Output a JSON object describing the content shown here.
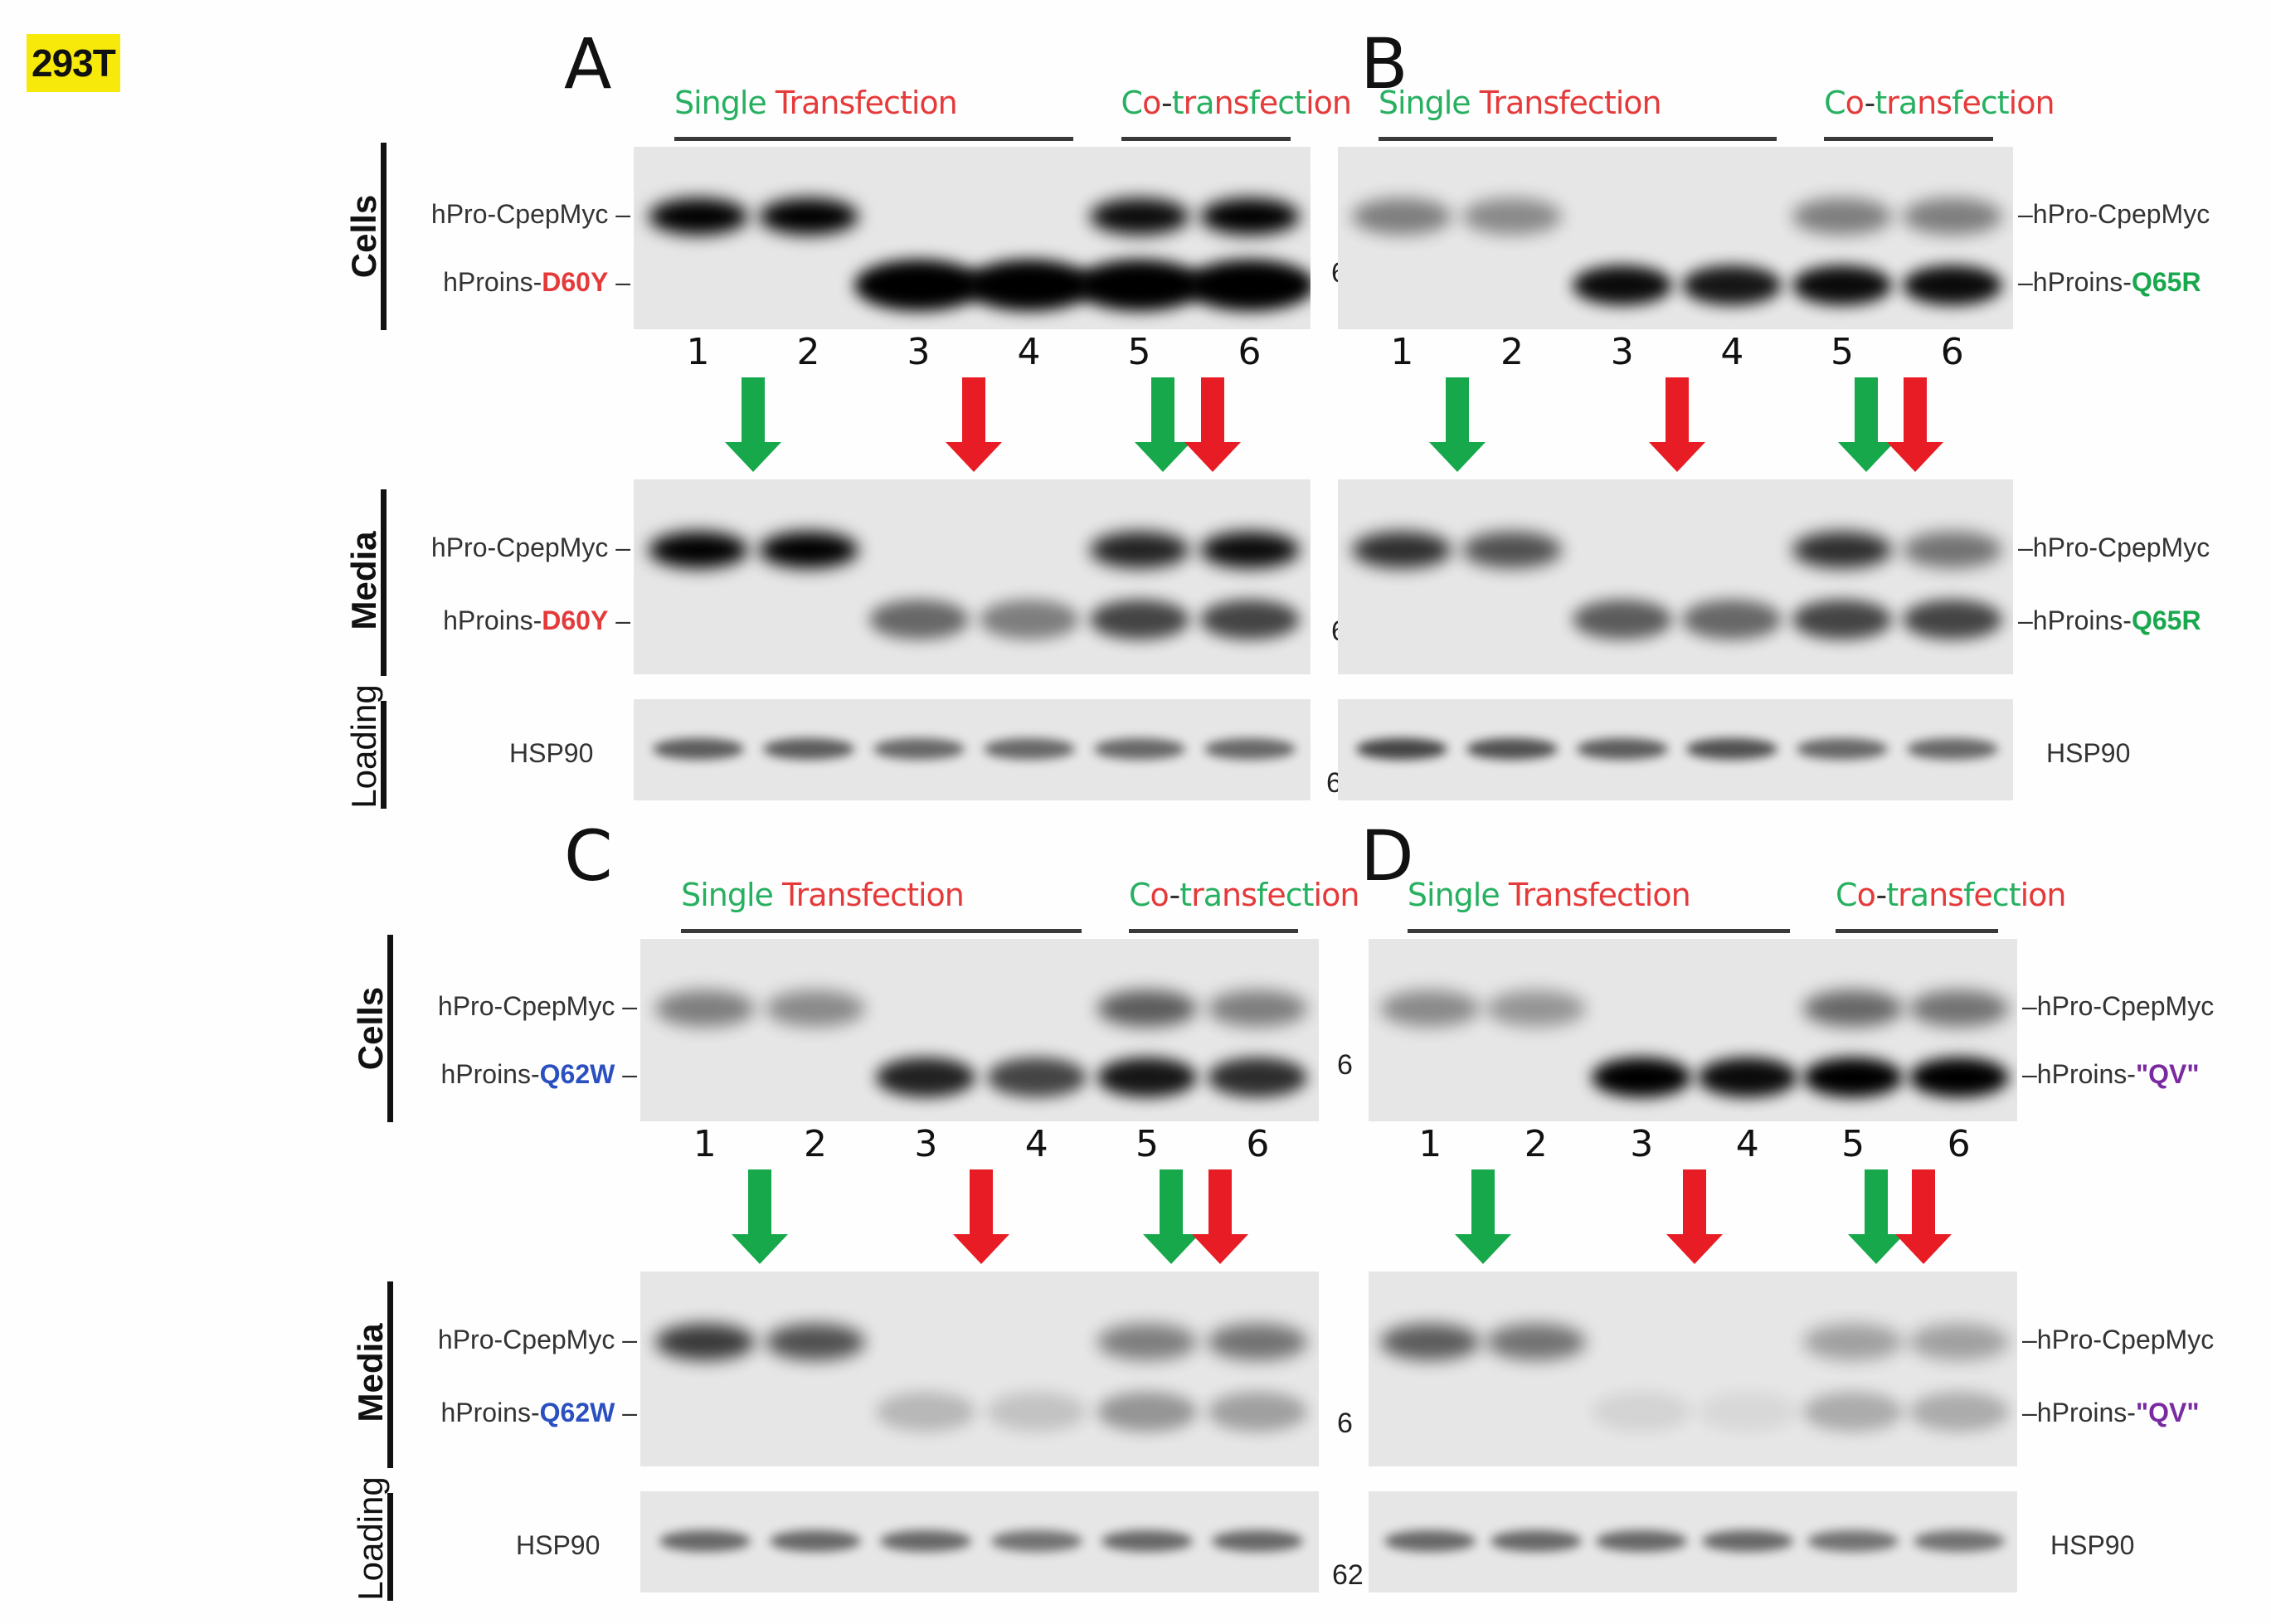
{
  "figure": {
    "cell_line": "293T",
    "colors": {
      "green": "#27b060",
      "red": "#e53a3a",
      "arrow_green": "#16a84a",
      "arrow_red": "#e81c24",
      "tag_yellow": "#f7ea0b",
      "d60y": "#e53a3a",
      "q65r": "#1aa84f",
      "q62w": "#2a4fc0",
      "qv": "#7a2aa0"
    },
    "header": {
      "single_green": "Single",
      "single_red": "Transfection",
      "co_transfection": "Co-transfection"
    },
    "row_labels": {
      "cells": "Cells",
      "media": "Media",
      "loading": "Loading"
    },
    "lanes": [
      "1",
      "2",
      "3",
      "4",
      "5",
      "6"
    ],
    "markers": {
      "cells": "6",
      "media": "6",
      "loading": "62"
    },
    "panels": [
      {
        "letter": "A",
        "upper_band": "hPro-CpepMyc",
        "lower_band_prefix": "hProins-",
        "mutant": "D60Y",
        "loading_label": "HSP90",
        "label_side": "left"
      },
      {
        "letter": "B",
        "upper_band": "hPro-CpepMyc",
        "lower_band_prefix": "hProins-",
        "mutant": "Q65R",
        "loading_label": "HSP90",
        "label_side": "right"
      },
      {
        "letter": "C",
        "upper_band": "hPro-CpepMyc",
        "lower_band_prefix": "hProins-",
        "mutant": "Q62W",
        "loading_label": "HSP90",
        "label_side": "left"
      },
      {
        "letter": "D",
        "upper_band": "hPro-CpepMyc",
        "lower_band_prefix": "hProins-",
        "mutant": "\"QV\"",
        "loading_label": "HSP90",
        "label_side": "right"
      }
    ]
  }
}
